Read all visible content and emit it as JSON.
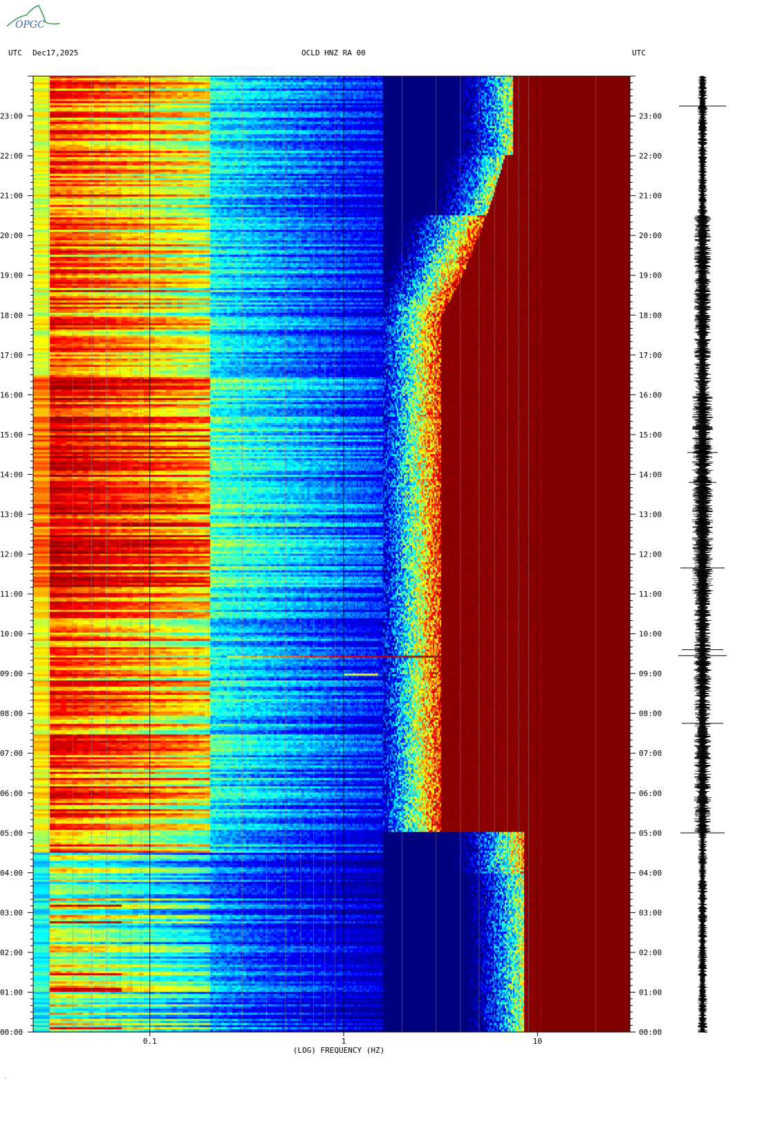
{
  "header": {
    "left_tz": "UTC",
    "date": "Dec17,2025",
    "station": "OCLD HNZ RA 00",
    "right_tz": "UTC"
  },
  "logo": {
    "text": "OPGC",
    "color": "#3a9a4a"
  },
  "chart_data": {
    "type": "heatmap",
    "title": "OCLD HNZ RA 00",
    "xlabel": "(LOG) FREQUENCY (HZ)",
    "x_scale": "log",
    "xlim": [
      0.025,
      30
    ],
    "x_ticks": [
      {
        "value": 0.1,
        "label": "0.1"
      },
      {
        "value": 1,
        "label": "1"
      },
      {
        "value": 10,
        "label": "10"
      }
    ],
    "y_ticks": [
      "00:00",
      "01:00",
      "02:00",
      "03:00",
      "04:00",
      "05:00",
      "06:00",
      "07:00",
      "08:00",
      "09:00",
      "10:00",
      "11:00",
      "12:00",
      "13:00",
      "14:00",
      "15:00",
      "16:00",
      "17:00",
      "18:00",
      "19:00",
      "20:00",
      "21:00",
      "22:00",
      "23:00"
    ],
    "ylim_hours": [
      0,
      24
    ],
    "colormap": [
      "#00007f",
      "#0000ff",
      "#00ffff",
      "#ffff00",
      "#ff0000",
      "#800000"
    ],
    "features": [
      {
        "time": "09:30",
        "event": "broadband signal 0.4-4 Hz"
      },
      {
        "time": "09:00",
        "event": "narrow signal near 1.2 Hz"
      }
    ],
    "waveform_panel": "seismogram trace 00:00-24:00"
  }
}
